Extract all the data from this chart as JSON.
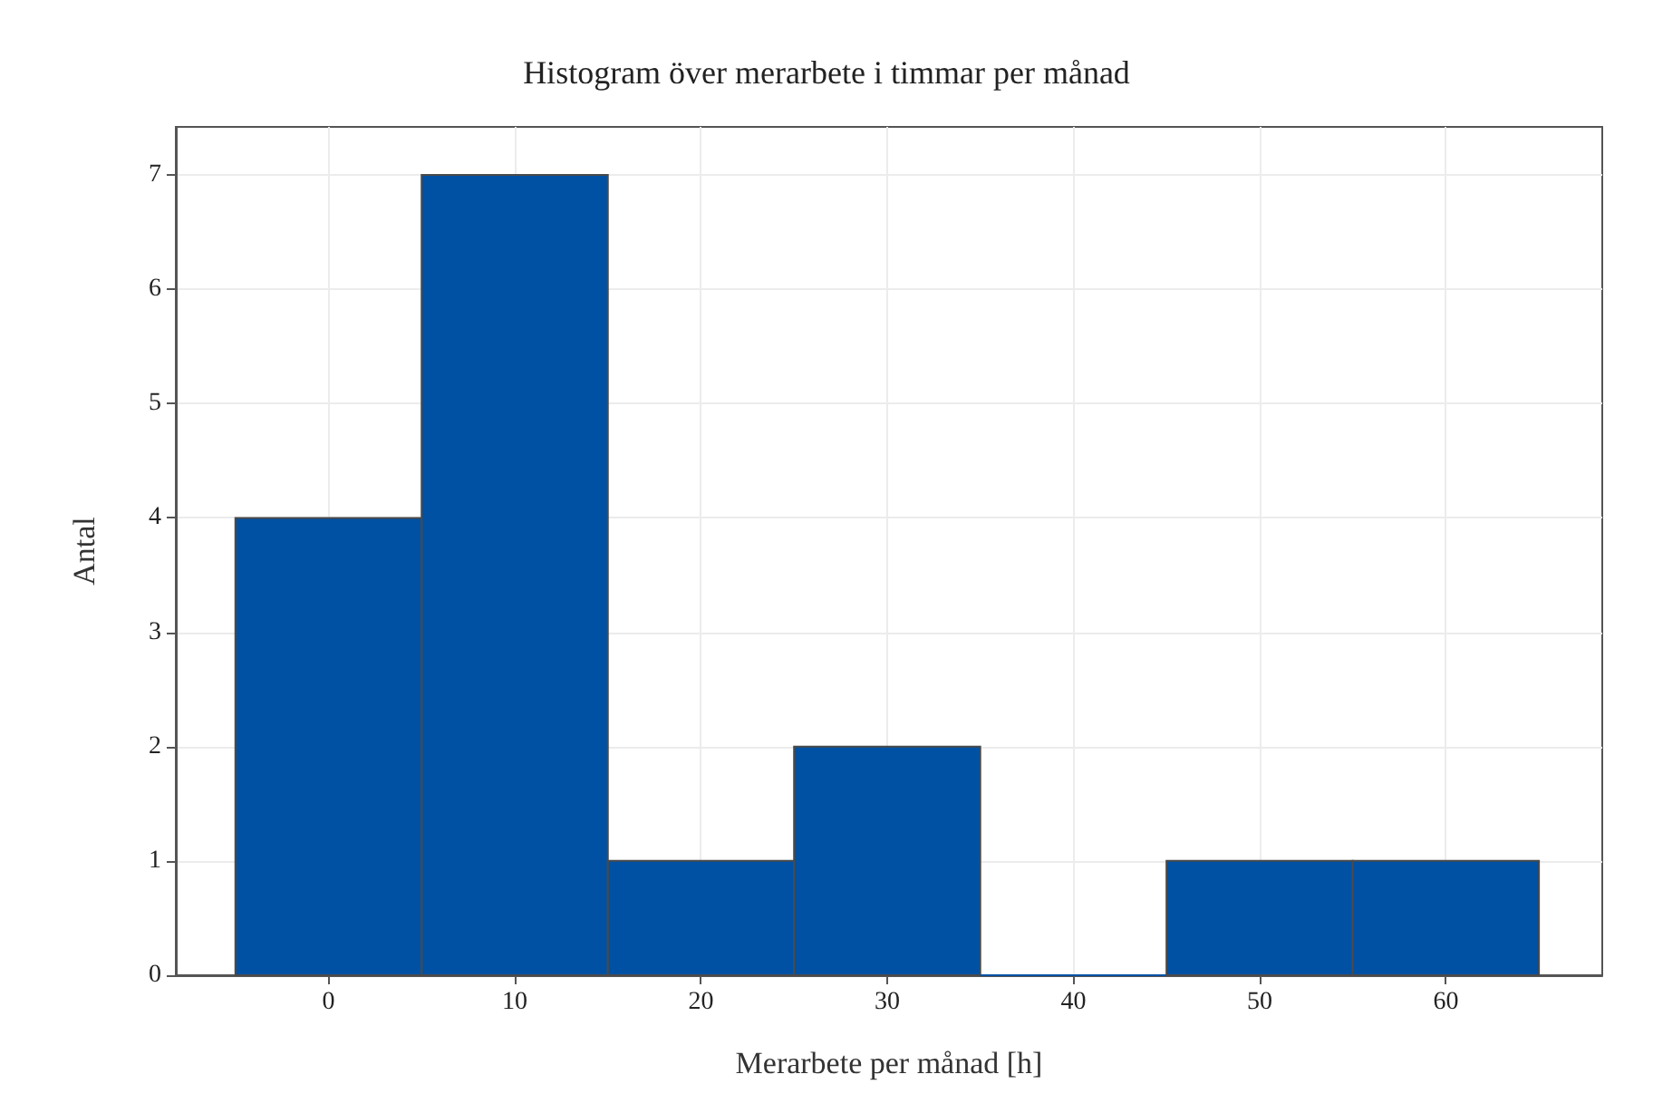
{
  "chart_data": {
    "type": "histogram",
    "title": "Histogram över merarbete i timmar per månad",
    "xlabel": "Merarbete per månad [h]",
    "ylabel": "Antal",
    "bins": [
      -5,
      5,
      15,
      25,
      35,
      45,
      55,
      65
    ],
    "values": [
      4,
      7,
      1,
      2,
      0,
      1,
      1
    ],
    "color": "#0051a3",
    "xlim": [
      -8.2,
      68.4
    ],
    "xticks": [
      0,
      10,
      20,
      30,
      40,
      50,
      60
    ],
    "ylim": [
      0,
      7.42
    ],
    "yticks": [
      0,
      1,
      2,
      3,
      4,
      5,
      6,
      7
    ],
    "grid": true
  }
}
